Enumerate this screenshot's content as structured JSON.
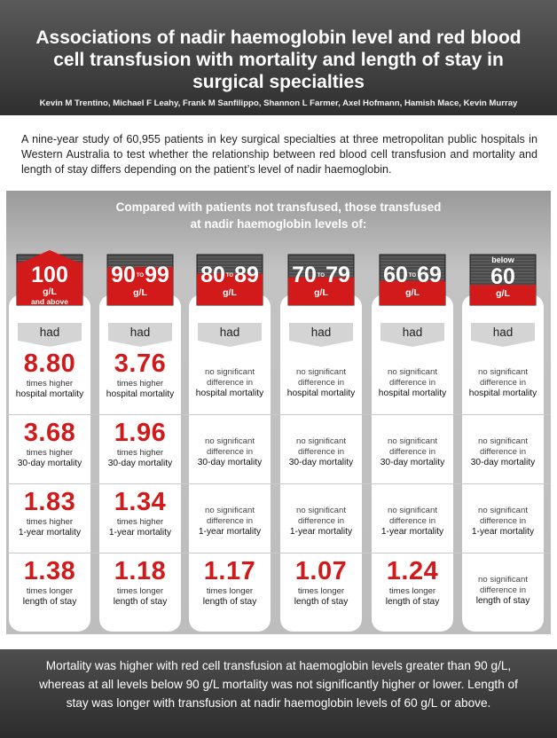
{
  "header": {
    "title": "Associations of nadir haemoglobin level and red blood cell transfusion with mortality and length of stay in surgical specialties",
    "authors": "Kevin M Trentino, Michael F Leahy, Frank M Sanfilippo, Shannon L Farmer, Axel Hofmann, Hamish Mace, Kevin Murray"
  },
  "intro": "A nine-year study of 60,955 patients in key surgical specialties at three metropolitan public hospitals in Western Australia to test whether the relationship between red blood cell transfusion and mortality and length of stay differs depending on the patient’s level of nadir haemoglobin.",
  "panel": {
    "title_line1": "Compared with patients not transfused, those transfused",
    "title_line2": "at nadir haemoglobin levels of:"
  },
  "had_label": "had",
  "colors": {
    "red": "#d21a1a",
    "dark": "#2f2f2f",
    "panel": "#bdbdbd"
  },
  "chart_data": {
    "type": "table",
    "title": "Compared with patients not transfused, those transfused at nadir haemoglobin levels of:",
    "categories": [
      "100 g/L and above",
      "90-99 g/L",
      "80-89 g/L",
      "70-79 g/L",
      "60-69 g/L",
      "below 60 g/L"
    ],
    "columns": [
      {
        "level": {
          "top": "",
          "num_a": "100",
          "num_b": "",
          "to": "",
          "unit": "g/L",
          "sub": "and above"
        },
        "fill_fraction": 0.85,
        "rows": [
          {
            "value": "8.80",
            "l1": "times higher",
            "l2": "hospital mortality"
          },
          {
            "value": "3.68",
            "l1": "times higher",
            "l2": "30-day mortality"
          },
          {
            "value": "1.83",
            "l1": "times higher",
            "l2": "1-year mortality"
          },
          {
            "value": "1.38",
            "l1": "times longer",
            "l2": "length of stay"
          }
        ]
      },
      {
        "level": {
          "top": "",
          "num_a": "90",
          "num_b": "99",
          "to": "TO",
          "unit": "g/L",
          "sub": ""
        },
        "fill_fraction": 0.75,
        "rows": [
          {
            "value": "3.76",
            "l1": "times higher",
            "l2": "hospital mortality"
          },
          {
            "value": "1.96",
            "l1": "times higher",
            "l2": "30-day mortality"
          },
          {
            "value": "1.34",
            "l1": "times higher",
            "l2": "1-year mortality"
          },
          {
            "value": "1.18",
            "l1": "times longer",
            "l2": "length of stay"
          }
        ]
      },
      {
        "level": {
          "top": "",
          "num_a": "80",
          "num_b": "89",
          "to": "TO",
          "unit": "g/L",
          "sub": ""
        },
        "fill_fraction": 0.62,
        "rows": [
          {
            "value": "",
            "l1": "no significant difference in",
            "l2": "hospital mortality"
          },
          {
            "value": "",
            "l1": "no significant difference in",
            "l2": "30-day mortality"
          },
          {
            "value": "",
            "l1": "no significant difference in",
            "l2": "1-year mortality"
          },
          {
            "value": "1.17",
            "l1": "times longer",
            "l2": "length of stay"
          }
        ]
      },
      {
        "level": {
          "top": "",
          "num_a": "70",
          "num_b": "79",
          "to": "TO",
          "unit": "g/L",
          "sub": ""
        },
        "fill_fraction": 0.55,
        "rows": [
          {
            "value": "",
            "l1": "no significant difference in",
            "l2": "hospital mortality"
          },
          {
            "value": "",
            "l1": "no significant difference in",
            "l2": "30-day mortality"
          },
          {
            "value": "",
            "l1": "no significant difference in",
            "l2": "1-year mortality"
          },
          {
            "value": "1.07",
            "l1": "times longer",
            "l2": "length of stay"
          }
        ]
      },
      {
        "level": {
          "top": "",
          "num_a": "60",
          "num_b": "69",
          "to": "TO",
          "unit": "g/L",
          "sub": ""
        },
        "fill_fraction": 0.48,
        "rows": [
          {
            "value": "",
            "l1": "no significant difference in",
            "l2": "hospital mortality"
          },
          {
            "value": "",
            "l1": "no significant difference in",
            "l2": "30-day mortality"
          },
          {
            "value": "",
            "l1": "no significant difference in",
            "l2": "1-year mortality"
          },
          {
            "value": "1.24",
            "l1": "times longer",
            "l2": "length of stay"
          }
        ]
      },
      {
        "level": {
          "top": "below",
          "num_a": "60",
          "num_b": "",
          "to": "",
          "unit": "g/L",
          "sub": ""
        },
        "fill_fraction": 0.4,
        "rows": [
          {
            "value": "",
            "l1": "no significant difference in",
            "l2": "hospital mortality"
          },
          {
            "value": "",
            "l1": "no significant difference in",
            "l2": "30-day mortality"
          },
          {
            "value": "",
            "l1": "no significant difference in",
            "l2": "1-year mortality"
          },
          {
            "value": "",
            "l1": "no significant difference in",
            "l2": "length of stay"
          }
        ]
      }
    ]
  },
  "footer": "Mortality was higher with red cell transfusion at haemoglobin levels greater than 90 g/L, whereas at all levels below 90 g/L mortality was not significantly higher or lower. Length of stay was longer with transfusion at nadir haemoglobin levels of 60 g/L or above."
}
